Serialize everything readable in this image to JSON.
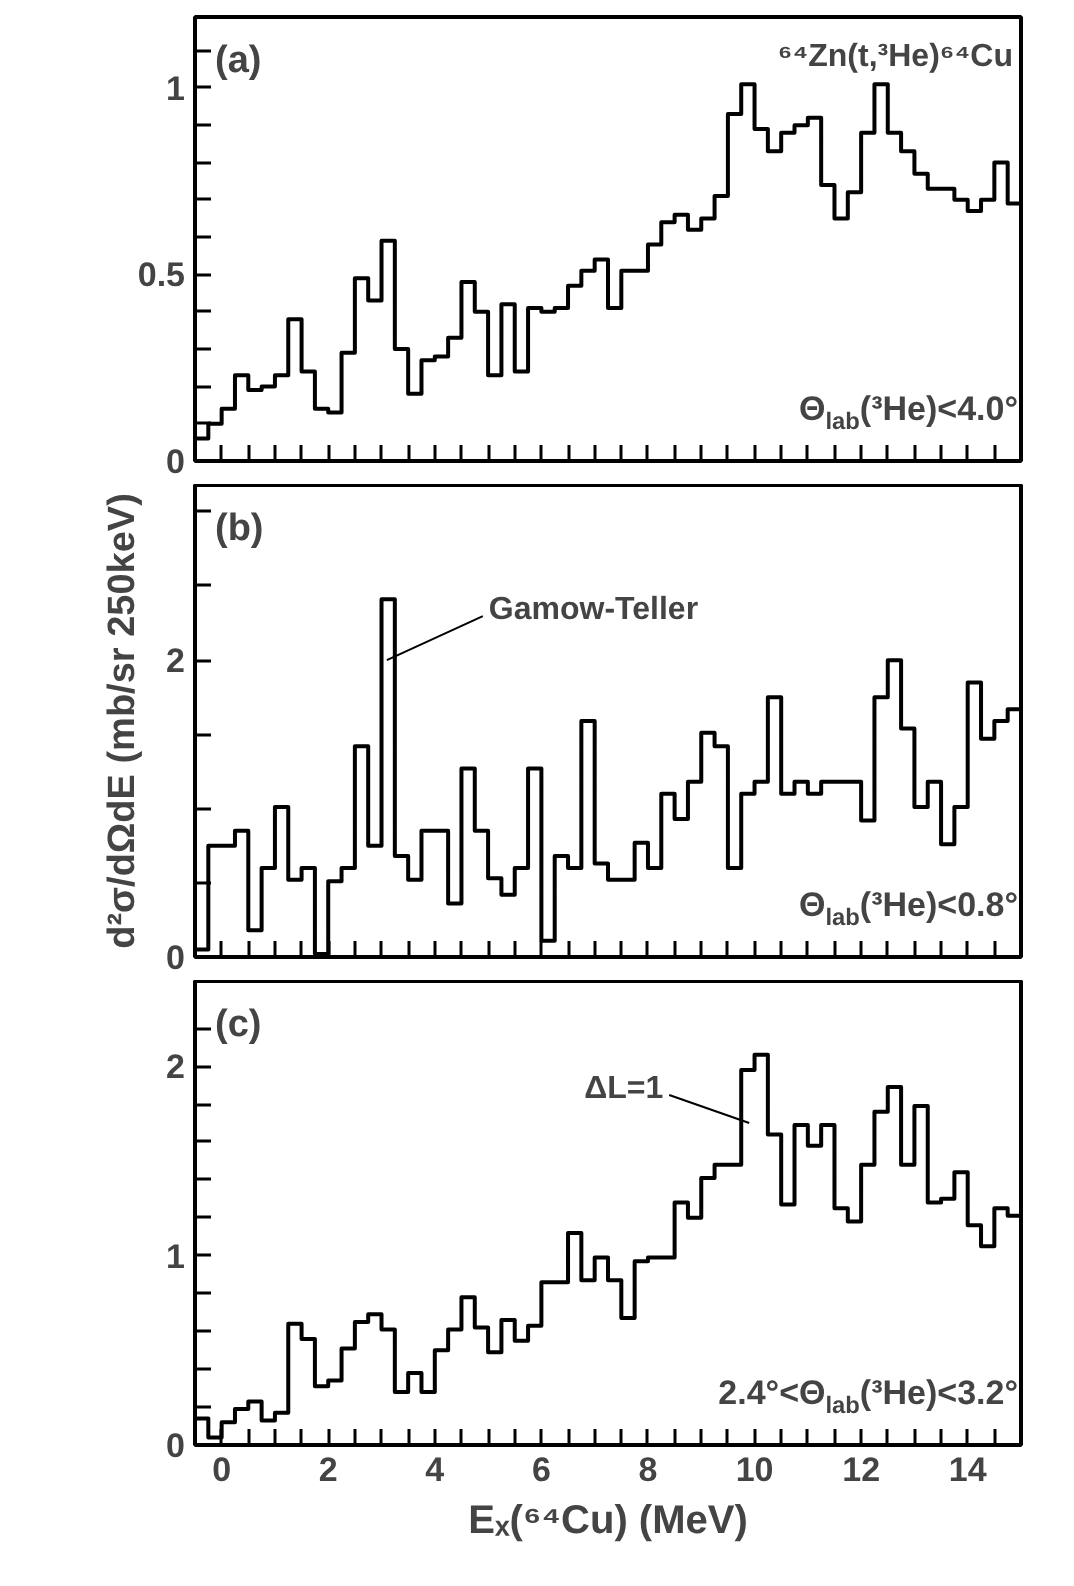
{
  "chart_data": [
    {
      "type": "histogram",
      "color": "#000000",
      "xlim": [
        -0.5,
        15
      ],
      "ylim": [
        0,
        1.19
      ],
      "tick_labels": "y",
      "grid": false,
      "xticks": [
        0,
        {
          "value": 0.5,
          "label": null
        },
        {
          "value": 1,
          "label": null
        },
        {
          "value": 1.5,
          "label": null
        },
        2,
        {
          "value": 2.5,
          "label": null
        },
        {
          "value": 3,
          "label": null
        },
        {
          "value": 3.5,
          "label": null
        },
        4,
        {
          "value": 4.5,
          "label": null
        },
        {
          "value": 5,
          "label": null
        },
        {
          "value": 5.5,
          "label": null
        },
        6,
        {
          "value": 6.5,
          "label": null
        },
        {
          "value": 7,
          "label": null
        },
        {
          "value": 7.5,
          "label": null
        },
        8,
        {
          "value": 8.5,
          "label": null
        },
        {
          "value": 9,
          "label": null
        },
        {
          "value": 9.5,
          "label": null
        },
        10,
        {
          "value": 10.5,
          "label": null
        },
        {
          "value": 11,
          "label": null
        },
        {
          "value": 11.5,
          "label": null
        },
        12,
        {
          "value": 12.5,
          "label": null
        },
        {
          "value": 13,
          "label": null
        },
        {
          "value": 13.5,
          "label": null
        },
        14,
        {
          "value": 14.5,
          "label": null
        }
      ],
      "yticks": [
        0,
        {
          "value": 0.1,
          "label": null
        },
        {
          "value": 0.2,
          "label": null
        },
        {
          "value": 0.3,
          "label": null
        },
        {
          "value": 0.4,
          "label": null
        },
        0.5,
        {
          "value": 0.6,
          "label": null
        },
        {
          "value": 0.7,
          "label": null
        },
        {
          "value": 0.8,
          "label": null
        },
        {
          "value": 0.9,
          "label": null
        },
        1,
        {
          "value": 1.1,
          "label": null
        }
      ],
      "bins": [
        -0.5,
        -0.25,
        0,
        0.25,
        0.5,
        0.75,
        1,
        1.25,
        1.5,
        1.75,
        2,
        2.25,
        2.5,
        2.75,
        3,
        3.25,
        3.5,
        3.75,
        4,
        4.25,
        4.5,
        4.75,
        5,
        5.25,
        5.5,
        5.75,
        6,
        6.25,
        6.5,
        6.75,
        7,
        7.25,
        7.5,
        7.75,
        8,
        8.25,
        8.5,
        8.75,
        9,
        9.25,
        9.5,
        9.75,
        10,
        10.25,
        10.5,
        10.75,
        11,
        11.25,
        11.5,
        11.75,
        12,
        12.25,
        12.5,
        12.75,
        13,
        13.25,
        13.5,
        13.75,
        14,
        14.25,
        14.5,
        14.75,
        15
      ],
      "values": [
        0.06,
        0.1,
        0.14,
        0.23,
        0.19,
        0.2,
        0.23,
        0.38,
        0.24,
        0.14,
        0.13,
        0.29,
        0.49,
        0.43,
        0.59,
        0.3,
        0.18,
        0.27,
        0.28,
        0.33,
        0.48,
        0.4,
        0.23,
        0.42,
        0.24,
        0.41,
        0.4,
        0.41,
        0.47,
        0.51,
        0.54,
        0.41,
        0.51,
        0.51,
        0.58,
        0.64,
        0.66,
        0.62,
        0.65,
        0.71,
        0.93,
        1.01,
        0.89,
        0.83,
        0.88,
        0.9,
        0.92,
        0.74,
        0.65,
        0.72,
        0.88,
        1.01,
        0.88,
        0.83,
        0.77,
        0.73,
        0.73,
        0.7,
        0.67,
        0.7,
        0.8,
        0.69
      ],
      "annotations": [
        "(a)",
        "⁶⁴Zn(t,³He)⁶⁴Cu",
        "Θ$_{lab}$(³He)<4.0°"
      ]
    },
    {
      "type": "histogram",
      "color": "#000000",
      "xlim": [
        -0.5,
        15
      ],
      "ylim": [
        0,
        3.18
      ],
      "tick_labels": "y",
      "grid": false,
      "ylabel": "d²σ/dΩdE (mb/sr 250keV)",
      "xticks": [
        0,
        {
          "value": 0.5,
          "label": null
        },
        {
          "value": 1,
          "label": null
        },
        {
          "value": 1.5,
          "label": null
        },
        2,
        {
          "value": 2.5,
          "label": null
        },
        {
          "value": 3,
          "label": null
        },
        {
          "value": 3.5,
          "label": null
        },
        4,
        {
          "value": 4.5,
          "label": null
        },
        {
          "value": 5,
          "label": null
        },
        {
          "value": 5.5,
          "label": null
        },
        6,
        {
          "value": 6.5,
          "label": null
        },
        {
          "value": 7,
          "label": null
        },
        {
          "value": 7.5,
          "label": null
        },
        8,
        {
          "value": 8.5,
          "label": null
        },
        {
          "value": 9,
          "label": null
        },
        {
          "value": 9.5,
          "label": null
        },
        10,
        {
          "value": 10.5,
          "label": null
        },
        {
          "value": 11,
          "label": null
        },
        {
          "value": 11.5,
          "label": null
        },
        12,
        {
          "value": 12.5,
          "label": null
        },
        {
          "value": 13,
          "label": null
        },
        {
          "value": 13.5,
          "label": null
        },
        14,
        {
          "value": 14.5,
          "label": null
        }
      ],
      "yticks": [
        0,
        {
          "value": 0.5,
          "label": null
        },
        {
          "value": 1,
          "label": null
        },
        {
          "value": 1.5,
          "label": null
        },
        2,
        {
          "value": 2.5,
          "label": null
        },
        {
          "value": 3,
          "label": null
        }
      ],
      "bins": [
        -0.5,
        -0.25,
        0,
        0.25,
        0.5,
        0.75,
        1,
        1.25,
        1.5,
        1.75,
        2,
        2.25,
        2.5,
        2.75,
        3,
        3.25,
        3.5,
        3.75,
        4,
        4.25,
        4.5,
        4.75,
        5,
        5.25,
        5.5,
        5.75,
        6,
        6.25,
        6.5,
        6.75,
        7,
        7.25,
        7.5,
        7.75,
        8,
        8.25,
        8.5,
        8.75,
        9,
        9.25,
        9.5,
        9.75,
        10,
        10.25,
        10.5,
        10.75,
        11,
        11.25,
        11.5,
        11.75,
        12,
        12.25,
        12.5,
        12.75,
        13,
        13.25,
        13.5,
        13.75,
        14,
        14.25,
        14.5,
        14.75,
        15
      ],
      "values": [
        0.05,
        0.75,
        0.75,
        0.85,
        0.18,
        0.6,
        1.01,
        0.52,
        0.6,
        0.02,
        0.51,
        0.6,
        1.42,
        0.75,
        2.41,
        0.68,
        0.52,
        0.85,
        0.85,
        0.36,
        1.27,
        0.85,
        0.53,
        0.42,
        0.6,
        1.27,
        0.11,
        0.68,
        0.6,
        1.59,
        0.63,
        0.52,
        0.52,
        0.77,
        0.6,
        1.1,
        0.93,
        1.18,
        1.51,
        1.42,
        0.6,
        1.1,
        1.18,
        1.75,
        1.1,
        1.18,
        1.1,
        1.18,
        1.18,
        1.18,
        0.92,
        1.75,
        2.0,
        1.54,
        1.01,
        1.18,
        0.76,
        1.01,
        1.85,
        1.47,
        1.59,
        1.67
      ],
      "annotations": [
        "(b)",
        {
          "text": "Gamow-Teller",
          "x": 3.1,
          "y": 2.0
        },
        "Θ$_{lab}$(³He)<0.8°"
      ]
    },
    {
      "type": "histogram",
      "color": "#000000",
      "xlim": [
        -0.5,
        15
      ],
      "ylim": [
        0,
        2.45
      ],
      "grid": false,
      "xlabel": "Eₓ(⁶⁴Cu) (MeV)",
      "xticks": [
        0,
        {
          "value": 0.5,
          "label": null
        },
        {
          "value": 1,
          "label": null
        },
        {
          "value": 1.5,
          "label": null
        },
        2,
        {
          "value": 2.5,
          "label": null
        },
        {
          "value": 3,
          "label": null
        },
        {
          "value": 3.5,
          "label": null
        },
        4,
        {
          "value": 4.5,
          "label": null
        },
        {
          "value": 5,
          "label": null
        },
        {
          "value": 5.5,
          "label": null
        },
        6,
        {
          "value": 6.5,
          "label": null
        },
        {
          "value": 7,
          "label": null
        },
        {
          "value": 7.5,
          "label": null
        },
        8,
        {
          "value": 8.5,
          "label": null
        },
        {
          "value": 9,
          "label": null
        },
        {
          "value": 9.5,
          "label": null
        },
        10,
        {
          "value": 10.5,
          "label": null
        },
        {
          "value": 11,
          "label": null
        },
        {
          "value": 11.5,
          "label": null
        },
        12,
        {
          "value": 12.5,
          "label": null
        },
        {
          "value": 13,
          "label": null
        },
        {
          "value": 13.5,
          "label": null
        },
        14,
        {
          "value": 14.5,
          "label": null
        }
      ],
      "yticks": [
        0,
        {
          "value": 0.2,
          "label": null
        },
        {
          "value": 0.4,
          "label": null
        },
        {
          "value": 0.6,
          "label": null
        },
        {
          "value": 0.8,
          "label": null
        },
        1,
        {
          "value": 1.2,
          "label": null
        },
        {
          "value": 1.4,
          "label": null
        },
        {
          "value": 1.6,
          "label": null
        },
        {
          "value": 1.8,
          "label": null
        },
        2,
        {
          "value": 2.2,
          "label": null
        }
      ],
      "bins": [
        -0.5,
        -0.25,
        0,
        0.25,
        0.5,
        0.75,
        1,
        1.25,
        1.5,
        1.75,
        2,
        2.25,
        2.5,
        2.75,
        3,
        3.25,
        3.5,
        3.75,
        4,
        4.25,
        4.5,
        4.75,
        5,
        5.25,
        5.5,
        5.75,
        6,
        6.25,
        6.5,
        6.75,
        7,
        7.25,
        7.5,
        7.75,
        8,
        8.25,
        8.5,
        8.75,
        9,
        9.25,
        9.5,
        9.75,
        10,
        10.25,
        10.5,
        10.75,
        11,
        11.25,
        11.5,
        11.75,
        12,
        12.25,
        12.5,
        12.75,
        13,
        13.25,
        13.5,
        13.75,
        14,
        14.25,
        14.5,
        14.75,
        15
      ],
      "values": [
        0.14,
        0.04,
        0.12,
        0.19,
        0.23,
        0.13,
        0.17,
        0.64,
        0.56,
        0.31,
        0.34,
        0.51,
        0.65,
        0.69,
        0.61,
        0.28,
        0.38,
        0.28,
        0.5,
        0.61,
        0.78,
        0.62,
        0.49,
        0.66,
        0.55,
        0.63,
        0.86,
        0.86,
        1.12,
        0.87,
        0.99,
        0.87,
        0.67,
        0.97,
        0.99,
        0.99,
        1.28,
        1.2,
        1.41,
        1.48,
        1.48,
        1.98,
        2.06,
        1.64,
        1.27,
        1.69,
        1.58,
        1.69,
        1.25,
        1.18,
        1.48,
        1.76,
        1.89,
        1.48,
        1.79,
        1.28,
        1.3,
        1.44,
        1.16,
        1.05,
        1.25,
        1.21
      ],
      "annotations": [
        "(c)",
        {
          "text": "ΔL=1",
          "x": 9.9,
          "y": 1.7
        },
        "2.4°<Θ$_{lab}$(³He)<3.2°"
      ]
    }
  ]
}
